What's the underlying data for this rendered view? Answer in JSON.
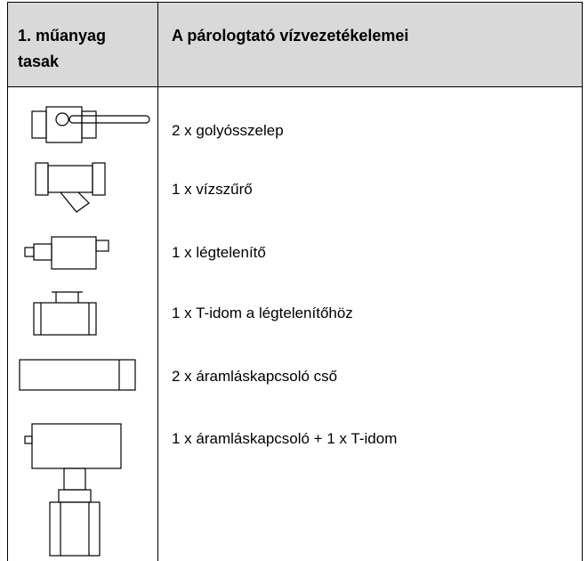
{
  "header": {
    "col1": "1. műanyag tasak",
    "col2": "A párologtató vízvezetékelemei"
  },
  "rows": [
    "2 x golyósszelep",
    "1 x vízszűrő",
    "1 x légtelenítő",
    "1 x T-idom a légtelenítőhöz",
    "2 x áramláskapcsoló cső",
    "1 x áramláskapcsoló + 1 x T-idom"
  ]
}
